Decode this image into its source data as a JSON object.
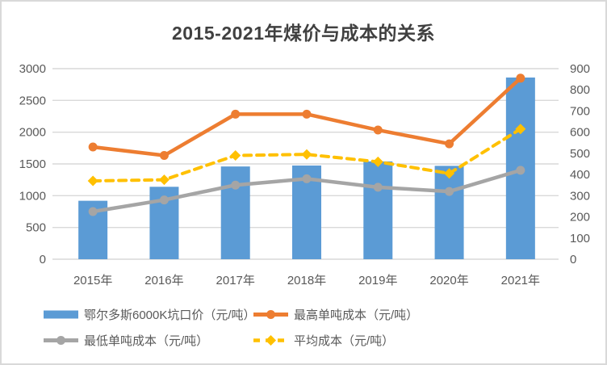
{
  "title": "2015-2021年煤价与成本的关系",
  "chart_data": {
    "type": "combo-bar-line",
    "title": "2015-2021年煤价与成本的关系",
    "categories": [
      "2015年",
      "2016年",
      "2017年",
      "2018年",
      "2019年",
      "2020年",
      "2021年"
    ],
    "bar_series": {
      "name": "鄂尔多斯6000K坑口价（元/吨）",
      "axis": "left",
      "color": "#5B9BD5",
      "values": [
        920,
        1140,
        1460,
        1475,
        1540,
        1470,
        2860
      ]
    },
    "line_series": [
      {
        "name": "最高单吨成本（元/吨）",
        "axis": "right",
        "color": "#ED7D31",
        "line_style": "solid",
        "marker": "circle",
        "values": [
          530,
          490,
          685,
          685,
          610,
          545,
          855
        ]
      },
      {
        "name": "最低单吨成本（元/吨）",
        "axis": "right",
        "color": "#A5A5A5",
        "line_style": "solid",
        "marker": "circle",
        "values": [
          225,
          280,
          350,
          380,
          340,
          320,
          420
        ]
      },
      {
        "name": "平均成本（元/吨）",
        "axis": "right",
        "color": "#FFC000",
        "line_style": "dashed",
        "marker": "diamond",
        "values": [
          370,
          375,
          490,
          495,
          460,
          405,
          615
        ]
      }
    ],
    "left_axis": {
      "min": 0,
      "max": 3000,
      "step": 500,
      "ticks": [
        "0",
        "500",
        "1000",
        "1500",
        "2000",
        "2500",
        "3000"
      ]
    },
    "right_axis": {
      "min": 0,
      "max": 900,
      "step": 100,
      "ticks": [
        "0",
        "100",
        "200",
        "300",
        "400",
        "500",
        "600",
        "700",
        "800",
        "900"
      ]
    },
    "grid": true,
    "legend_position": "bottom",
    "colors": {
      "grid": "#D9D9D9",
      "axis_text": "#595959",
      "title_text": "#404040",
      "background": "#FFFFFF",
      "border": "#D9D9D9"
    }
  },
  "legend": {
    "items": [
      {
        "label": "鄂尔多斯6000K坑口价（元/吨）",
        "type": "bar",
        "color": "#5B9BD5"
      },
      {
        "label": "最高单吨成本（元/吨）",
        "type": "line-circle",
        "color": "#ED7D31"
      },
      {
        "label": "最低单吨成本（元/吨）",
        "type": "line-circle",
        "color": "#A5A5A5"
      },
      {
        "label": "平均成本（元/吨）",
        "type": "dashed-diamond",
        "color": "#FFC000"
      }
    ]
  }
}
